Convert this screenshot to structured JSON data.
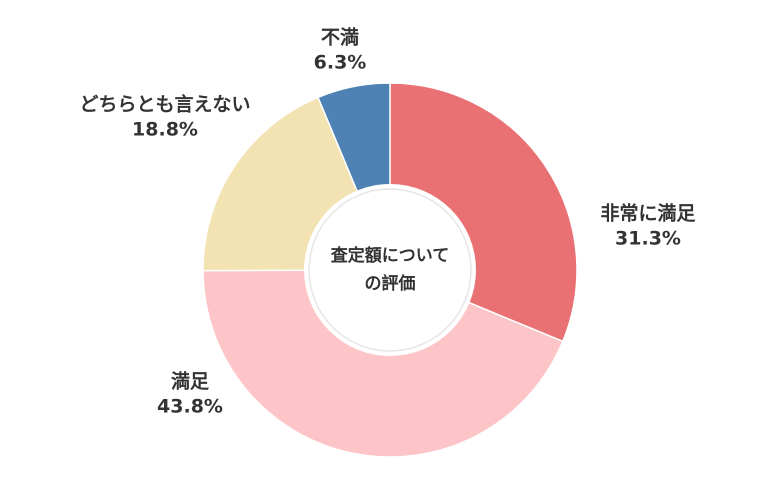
{
  "chart_data": {
    "type": "donut",
    "center_label": [
      "査定額について",
      "の評価"
    ],
    "categories": [
      "非常に満足",
      "満足",
      "どちらとも言えない",
      "不満"
    ],
    "values": [
      31.3,
      43.8,
      18.8,
      6.3
    ],
    "value_labels": [
      "31.3%",
      "43.8%",
      "18.8%",
      "6.3%"
    ],
    "colors": [
      "#ea7173",
      "#fdc5c7",
      "#f3e2b2",
      "#4f82b4"
    ]
  }
}
